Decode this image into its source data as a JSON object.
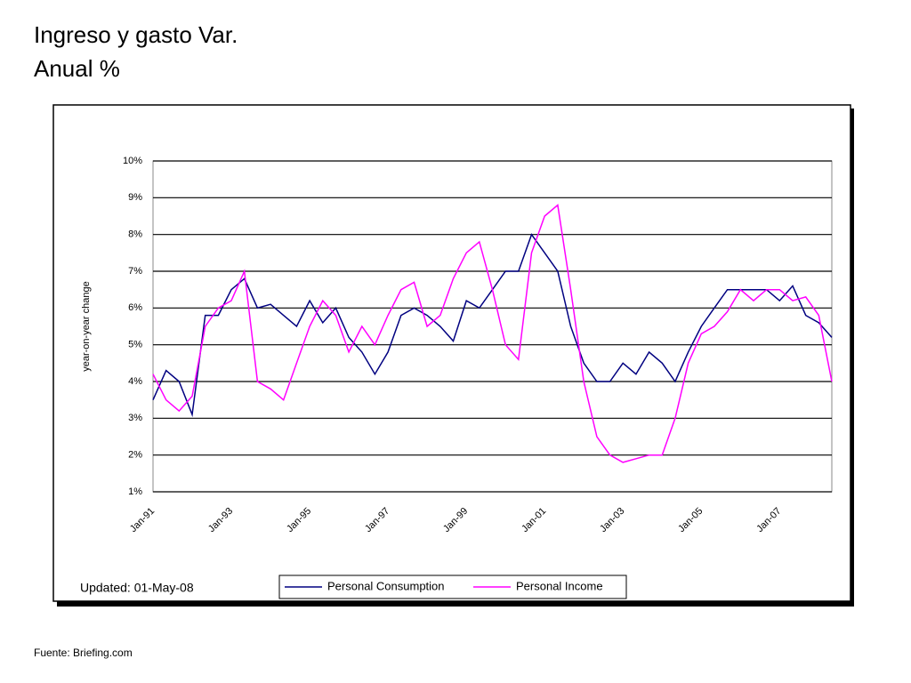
{
  "slide_title": [
    "Ingreso y gasto Var.",
    "Anual %"
  ],
  "source": "Fuente: Briefing.com",
  "chart_data": {
    "type": "line",
    "y_label": "year-on-year change",
    "note": "Updated: 01-May-08",
    "categories": [
      "Jan-91",
      null,
      null,
      null,
      null,
      null,
      "Jan-93",
      null,
      null,
      null,
      null,
      null,
      "Jan-95",
      null,
      null,
      null,
      null,
      null,
      "Jan-97",
      null,
      null,
      null,
      null,
      null,
      "Jan-99",
      null,
      null,
      null,
      null,
      null,
      "Jan-01",
      null,
      null,
      null,
      null,
      null,
      "Jan-03",
      null,
      null,
      null,
      null,
      null,
      "Jan-05",
      null,
      null,
      null,
      null,
      null,
      "Jan-07",
      null,
      null,
      null,
      null
    ],
    "ylim": [
      1,
      10
    ],
    "yticks": [
      {
        "value": 1,
        "label": "1%"
      },
      {
        "value": 2,
        "label": "2%"
      },
      {
        "value": 3,
        "label": "3%"
      },
      {
        "value": 4,
        "label": "4%"
      },
      {
        "value": 5,
        "label": "5%"
      },
      {
        "value": 6,
        "label": "6%"
      },
      {
        "value": 7,
        "label": "7%"
      },
      {
        "value": 8,
        "label": "8%"
      },
      {
        "value": 9,
        "label": "9%"
      },
      {
        "value": 10,
        "label": "10%"
      }
    ],
    "grid": true,
    "series": [
      {
        "name": "Personal Consumption",
        "color": "#000080",
        "values": [
          3.5,
          4.3,
          4.0,
          3.1,
          5.8,
          5.8,
          6.5,
          6.8,
          6.0,
          6.1,
          5.8,
          5.5,
          6.2,
          5.6,
          6.0,
          5.2,
          4.8,
          4.2,
          4.8,
          5.8,
          6.0,
          5.8,
          5.5,
          5.1,
          6.2,
          6.0,
          6.5,
          7.0,
          7.0,
          8.0,
          7.5,
          7.0,
          5.5,
          4.5,
          4.0,
          4.0,
          4.5,
          4.2,
          4.8,
          4.5,
          4.0,
          4.8,
          5.5,
          6.0,
          6.5,
          6.5,
          6.5,
          6.5,
          6.2,
          6.6,
          5.8,
          5.6,
          5.2
        ]
      },
      {
        "name": "Personal Income",
        "color": "#ff00ff",
        "values": [
          4.2,
          3.5,
          3.2,
          3.6,
          5.5,
          6.0,
          6.2,
          7.0,
          4.0,
          3.8,
          3.5,
          4.5,
          5.5,
          6.2,
          5.8,
          4.8,
          5.5,
          5.0,
          5.8,
          6.5,
          6.7,
          5.5,
          5.8,
          6.8,
          7.5,
          7.8,
          6.5,
          5.0,
          4.6,
          7.5,
          8.5,
          8.8,
          6.5,
          4.0,
          2.5,
          2.0,
          1.8,
          1.9,
          2.0,
          2.0,
          3.0,
          4.5,
          5.3,
          5.5,
          5.9,
          6.5,
          6.2,
          6.5,
          6.5,
          6.2,
          6.3,
          5.8,
          4.0
        ]
      }
    ]
  }
}
